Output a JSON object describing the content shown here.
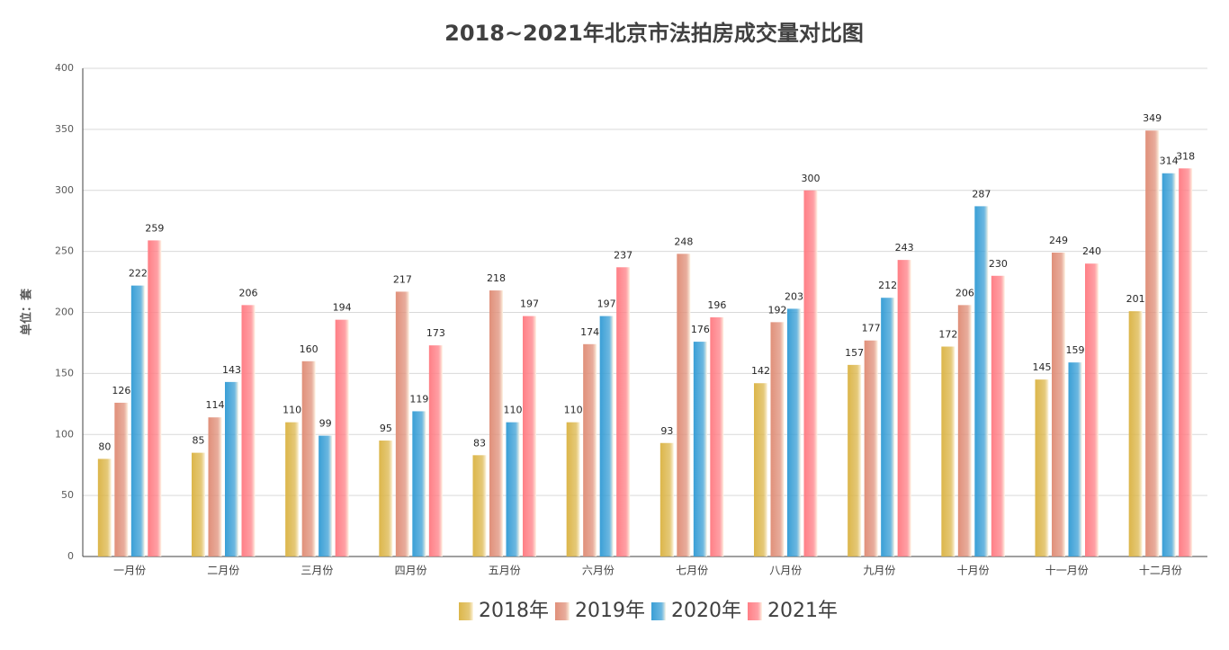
{
  "chart_data": {
    "type": "bar",
    "title": "2018~2021年北京市法拍房成交量对比图",
    "y_label": "单位：套",
    "categories": [
      "一月份",
      "二月份",
      "三月份",
      "四月份",
      "五月份",
      "六月份",
      "七月份",
      "八月份",
      "九月份",
      "十月份",
      "十一月份",
      "十二月份"
    ],
    "series": [
      {
        "name": "2018年",
        "color": "#dcb64a",
        "values": [
          80,
          85,
          110,
          95,
          83,
          110,
          93,
          142,
          157,
          172,
          145,
          201
        ]
      },
      {
        "name": "2019年",
        "color": "#e0907a",
        "values": [
          126,
          114,
          160,
          217,
          218,
          174,
          248,
          192,
          177,
          206,
          249,
          349
        ]
      },
      {
        "name": "2020年",
        "color": "#3a9fd6",
        "values": [
          222,
          143,
          99,
          119,
          110,
          197,
          176,
          203,
          212,
          287,
          159,
          314
        ]
      },
      {
        "name": "2021年",
        "color": "#ff7f86",
        "values": [
          259,
          206,
          194,
          173,
          197,
          237,
          196,
          300,
          243,
          230,
          240,
          318
        ]
      }
    ],
    "ylim": [
      0,
      400
    ],
    "yticks": [
      0,
      50,
      100,
      150,
      200,
      250,
      300,
      350,
      400
    ],
    "grid": true,
    "legend": "bottom"
  }
}
